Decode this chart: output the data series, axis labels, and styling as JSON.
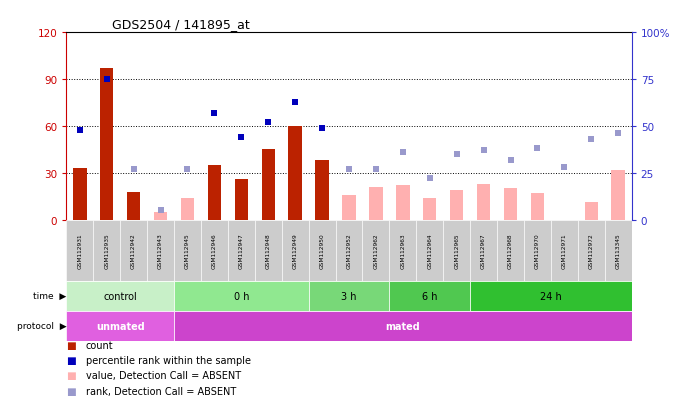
{
  "title": "GDS2504 / 141895_at",
  "samples": [
    "GSM112931",
    "GSM112935",
    "GSM112942",
    "GSM112943",
    "GSM112945",
    "GSM112946",
    "GSM112947",
    "GSM112948",
    "GSM112949",
    "GSM112950",
    "GSM112952",
    "GSM112962",
    "GSM112963",
    "GSM112964",
    "GSM112965",
    "GSM112967",
    "GSM112968",
    "GSM112970",
    "GSM112971",
    "GSM112972",
    "GSM113345"
  ],
  "count_values": [
    33,
    97,
    18,
    null,
    null,
    35,
    26,
    45,
    60,
    38,
    null,
    null,
    null,
    null,
    null,
    null,
    null,
    null,
    null,
    null,
    null
  ],
  "count_absent": [
    null,
    null,
    null,
    5,
    14,
    null,
    null,
    null,
    null,
    null,
    16,
    21,
    22,
    14,
    19,
    23,
    20,
    17,
    null,
    11,
    32
  ],
  "rank_values": [
    48,
    75,
    null,
    null,
    null,
    57,
    44,
    52,
    63,
    49,
    null,
    null,
    null,
    null,
    null,
    null,
    null,
    null,
    null,
    null,
    null
  ],
  "rank_absent": [
    null,
    null,
    27,
    5,
    27,
    null,
    null,
    null,
    null,
    null,
    27,
    27,
    36,
    22,
    35,
    37,
    32,
    38,
    28,
    43,
    46
  ],
  "time_groups": [
    {
      "label": "control",
      "start": 0,
      "end": 4,
      "color": "#c8f0c8"
    },
    {
      "label": "0 h",
      "start": 4,
      "end": 9,
      "color": "#90e890"
    },
    {
      "label": "3 h",
      "start": 9,
      "end": 12,
      "color": "#78d878"
    },
    {
      "label": "6 h",
      "start": 12,
      "end": 15,
      "color": "#50c850"
    },
    {
      "label": "24 h",
      "start": 15,
      "end": 21,
      "color": "#30c030"
    }
  ],
  "protocol_groups": [
    {
      "label": "unmated",
      "start": 0,
      "end": 4,
      "color": "#e060e0"
    },
    {
      "label": "mated",
      "start": 4,
      "end": 21,
      "color": "#cc44cc"
    }
  ],
  "bar_color_present": "#bb2200",
  "bar_color_absent": "#ffb0b0",
  "dot_color_present": "#0000bb",
  "dot_color_absent": "#9999cc",
  "ylim_left": [
    0,
    120
  ],
  "ylim_right": [
    0,
    100
  ],
  "yticks_left": [
    0,
    30,
    60,
    90,
    120
  ],
  "yticks_right": [
    0,
    25,
    50,
    75,
    100
  ],
  "ylabel_left_color": "#cc0000",
  "ylabel_right_color": "#3333cc",
  "background_color": "#ffffff",
  "bar_width": 0.5
}
